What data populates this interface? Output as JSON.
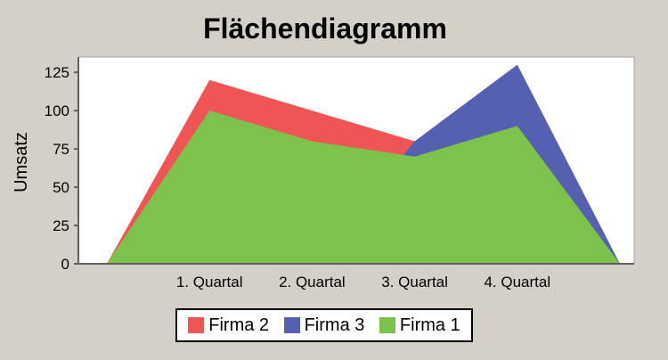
{
  "chart_data": {
    "type": "area",
    "title": "Flächendiagramm",
    "xlabel": "",
    "ylabel": "Umsatz",
    "categories": [
      "1. Quartal",
      "2. Quartal",
      "3. Quartal",
      "4. Quartal"
    ],
    "ylim": [
      0,
      135
    ],
    "yticks": [
      0,
      25,
      50,
      75,
      100,
      125
    ],
    "grid": false,
    "legend_position": "bottom",
    "series": [
      {
        "name": "Firma 2",
        "color": "#f05555",
        "values": [
          120,
          100,
          80,
          0
        ]
      },
      {
        "name": "Firma 3",
        "color": "#5560b0",
        "values": [
          0,
          0,
          80,
          130
        ]
      },
      {
        "name": "Firma 1",
        "color": "#7dc24d",
        "values": [
          100,
          80,
          70,
          90
        ]
      }
    ]
  }
}
